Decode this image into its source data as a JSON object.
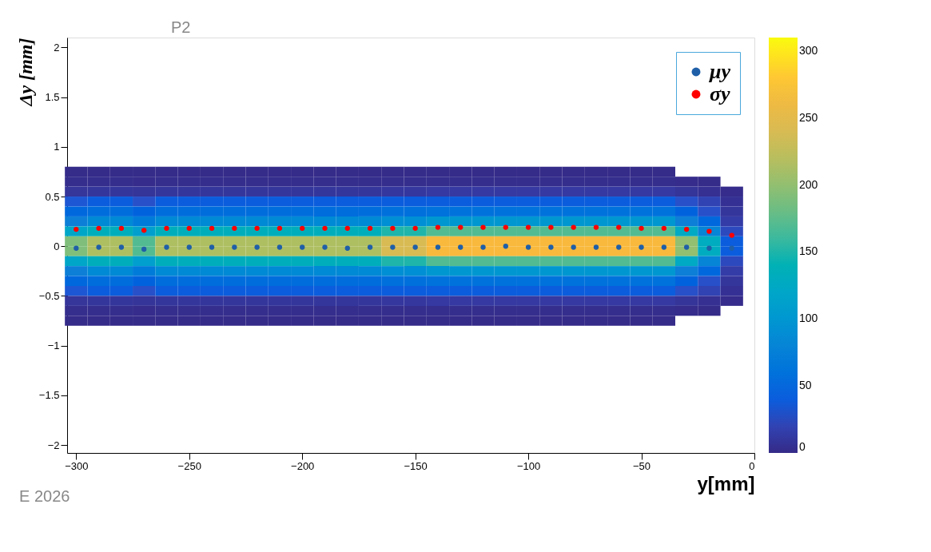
{
  "chart_data": {
    "type": "heatmap",
    "xlabel": "y[mm]",
    "ylabel": "Δy [mm]",
    "annotations": [
      "E 2026",
      "P2"
    ],
    "x": [
      -300,
      -290,
      -280,
      -270,
      -260,
      -250,
      -240,
      -230,
      -220,
      -210,
      -200,
      -190,
      -180,
      -170,
      -160,
      -150,
      -140,
      -130,
      -120,
      -110,
      -100,
      -90,
      -80,
      -70,
      -60,
      -50,
      -40,
      -30,
      -20,
      -10
    ],
    "y": [
      0.75,
      0.65,
      0.55,
      0.45,
      0.35,
      0.25,
      0.15,
      0.05,
      -0.05,
      -0.15,
      -0.25,
      -0.35,
      -0.45,
      -0.55,
      -0.65,
      -0.75
    ],
    "cells": [
      [
        1,
        1,
        1,
        1,
        1,
        1,
        1,
        1,
        1,
        1,
        1,
        1,
        1,
        1,
        1,
        1,
        1,
        1,
        1,
        1,
        1,
        1,
        1,
        1,
        1,
        1,
        1,
        null,
        null,
        null
      ],
      [
        3,
        3,
        3,
        2,
        3,
        3,
        3,
        3,
        3,
        3,
        3,
        3,
        3,
        3,
        3,
        3,
        3,
        3,
        3,
        3,
        3,
        3,
        3,
        3,
        3,
        3,
        3,
        2,
        1,
        null
      ],
      [
        9,
        10,
        10,
        8,
        10,
        10,
        10,
        10,
        10,
        10,
        10,
        10,
        10,
        10,
        11,
        11,
        12,
        12,
        12,
        12,
        12,
        12,
        12,
        12,
        12,
        12,
        12,
        8,
        5,
        2
      ],
      [
        35,
        40,
        40,
        30,
        40,
        40,
        40,
        40,
        40,
        40,
        40,
        40,
        40,
        40,
        40,
        40,
        40,
        40,
        40,
        40,
        40,
        40,
        40,
        40,
        40,
        40,
        40,
        30,
        20,
        6
      ],
      [
        50,
        55,
        55,
        45,
        55,
        55,
        55,
        55,
        55,
        55,
        55,
        55,
        55,
        55,
        58,
        58,
        60,
        60,
        60,
        60,
        60,
        60,
        60,
        60,
        60,
        60,
        60,
        45,
        30,
        10
      ],
      [
        75,
        85,
        85,
        70,
        85,
        85,
        85,
        85,
        85,
        85,
        85,
        85,
        85,
        85,
        92,
        92,
        100,
        100,
        100,
        100,
        100,
        100,
        100,
        100,
        100,
        100,
        100,
        75,
        50,
        15
      ],
      [
        120,
        135,
        135,
        110,
        135,
        135,
        135,
        135,
        135,
        135,
        135,
        135,
        135,
        135,
        150,
        150,
        170,
        170,
        170,
        170,
        170,
        170,
        170,
        170,
        170,
        170,
        170,
        125,
        80,
        25
      ],
      [
        190,
        215,
        215,
        170,
        215,
        215,
        215,
        215,
        215,
        215,
        215,
        215,
        215,
        215,
        240,
        240,
        270,
        270,
        270,
        270,
        270,
        270,
        270,
        270,
        270,
        270,
        270,
        200,
        130,
        40
      ],
      [
        190,
        215,
        215,
        170,
        215,
        215,
        215,
        215,
        215,
        215,
        215,
        215,
        215,
        215,
        240,
        240,
        270,
        270,
        270,
        270,
        270,
        270,
        270,
        270,
        270,
        270,
        270,
        200,
        130,
        40
      ],
      [
        120,
        135,
        135,
        110,
        135,
        135,
        135,
        135,
        135,
        135,
        135,
        135,
        135,
        135,
        150,
        150,
        170,
        170,
        170,
        170,
        170,
        170,
        170,
        170,
        170,
        170,
        170,
        125,
        80,
        25
      ],
      [
        75,
        85,
        85,
        70,
        85,
        85,
        85,
        85,
        85,
        85,
        85,
        85,
        85,
        85,
        92,
        92,
        100,
        100,
        100,
        100,
        100,
        100,
        100,
        100,
        100,
        100,
        100,
        75,
        50,
        15
      ],
      [
        50,
        55,
        55,
        45,
        55,
        55,
        55,
        55,
        55,
        55,
        55,
        55,
        55,
        55,
        58,
        58,
        60,
        60,
        60,
        60,
        60,
        60,
        60,
        60,
        60,
        60,
        60,
        45,
        30,
        10
      ],
      [
        35,
        40,
        40,
        30,
        40,
        40,
        40,
        40,
        40,
        40,
        40,
        40,
        40,
        40,
        40,
        40,
        40,
        40,
        40,
        40,
        40,
        40,
        40,
        40,
        40,
        40,
        40,
        30,
        20,
        6
      ],
      [
        9,
        10,
        10,
        8,
        10,
        10,
        10,
        10,
        10,
        10,
        10,
        10,
        10,
        10,
        11,
        11,
        12,
        12,
        12,
        12,
        12,
        12,
        12,
        12,
        12,
        12,
        12,
        8,
        5,
        2
      ],
      [
        3,
        3,
        3,
        2,
        3,
        3,
        3,
        3,
        3,
        3,
        3,
        3,
        3,
        3,
        3,
        3,
        3,
        3,
        3,
        3,
        3,
        3,
        3,
        3,
        3,
        3,
        3,
        2,
        1,
        null
      ],
      [
        1,
        1,
        1,
        1,
        1,
        1,
        1,
        1,
        1,
        1,
        1,
        1,
        1,
        1,
        1,
        1,
        1,
        1,
        1,
        1,
        1,
        1,
        1,
        1,
        1,
        1,
        1,
        null,
        null,
        null
      ]
    ],
    "clim": [
      0,
      310
    ],
    "cticks": [
      0,
      50,
      100,
      150,
      200,
      250,
      300
    ],
    "xlim": [
      -304,
      0
    ],
    "xticks": [
      -300,
      -250,
      -200,
      -150,
      -100,
      -50,
      0
    ],
    "ylim": [
      -2.08,
      2.1
    ],
    "yticks": [
      -2,
      -1.5,
      -1,
      -0.5,
      0,
      0.5,
      1,
      1.5,
      2
    ],
    "grid": false,
    "legend": "top right",
    "marker": "circle",
    "series": [
      {
        "name": "μy",
        "type": "scatter",
        "color": "#1f5fa8",
        "x": [
          -300,
          -290,
          -280,
          -270,
          -260,
          -250,
          -240,
          -230,
          -220,
          -210,
          -200,
          -190,
          -180,
          -170,
          -160,
          -150,
          -140,
          -130,
          -120,
          -110,
          -100,
          -90,
          -80,
          -70,
          -60,
          -50,
          -40,
          -30,
          -20,
          -10
        ],
        "values": [
          -0.02,
          -0.01,
          -0.01,
          -0.03,
          -0.01,
          -0.01,
          -0.01,
          -0.01,
          -0.01,
          -0.01,
          -0.01,
          -0.01,
          -0.02,
          -0.01,
          -0.01,
          -0.01,
          -0.01,
          -0.01,
          -0.01,
          0.0,
          -0.01,
          -0.01,
          -0.01,
          -0.01,
          -0.01,
          -0.01,
          -0.01,
          -0.01,
          -0.02,
          -0.02
        ]
      },
      {
        "name": "σy",
        "type": "scatter",
        "color": "#ff0000",
        "x": [
          -300,
          -290,
          -280,
          -270,
          -260,
          -250,
          -240,
          -230,
          -220,
          -210,
          -200,
          -190,
          -180,
          -170,
          -160,
          -150,
          -140,
          -130,
          -120,
          -110,
          -100,
          -90,
          -80,
          -70,
          -60,
          -50,
          -40,
          -30,
          -20,
          -10
        ],
        "values": [
          0.17,
          0.18,
          0.18,
          0.16,
          0.18,
          0.18,
          0.18,
          0.18,
          0.18,
          0.18,
          0.18,
          0.18,
          0.18,
          0.18,
          0.18,
          0.18,
          0.19,
          0.19,
          0.19,
          0.19,
          0.19,
          0.19,
          0.19,
          0.19,
          0.19,
          0.18,
          0.18,
          0.17,
          0.15,
          0.11
        ]
      }
    ]
  }
}
